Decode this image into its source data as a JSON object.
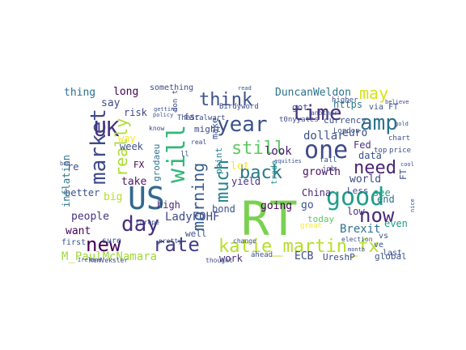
{
  "cloud": {
    "words": [
      {
        "text": "RT",
        "color": "#7ad151"
      },
      {
        "text": "US",
        "color": "#31688e"
      },
      {
        "text": "will",
        "color": "#35b779"
      },
      {
        "text": "market",
        "color": "#3e4a89"
      },
      {
        "text": "time",
        "color": "#46327e"
      },
      {
        "text": "year",
        "color": "#3b528b"
      },
      {
        "text": "amp",
        "color": "#2c728e"
      },
      {
        "text": "one",
        "color": "#3e4a89"
      },
      {
        "text": "UK",
        "color": "#46327e"
      },
      {
        "text": "good",
        "color": "#1f9e89"
      },
      {
        "text": "now",
        "color": "#482878"
      },
      {
        "text": "day",
        "color": "#472d7b"
      },
      {
        "text": "new",
        "color": "#440154"
      },
      {
        "text": "rate",
        "color": "#433e85"
      },
      {
        "text": "katie_martin_fx",
        "color": "#b5de2b"
      },
      {
        "text": "think",
        "color": "#3b528b"
      },
      {
        "text": "still",
        "color": "#5ec962"
      },
      {
        "text": "back",
        "color": "#2a788e"
      },
      {
        "text": "need",
        "color": "#482475"
      },
      {
        "text": "really",
        "color": "#addc30"
      },
      {
        "text": "much",
        "color": "#26828e"
      },
      {
        "text": "morning",
        "color": "#365c8d"
      },
      {
        "text": "may",
        "color": "#d8e219"
      },
      {
        "text": "DuncanWeldon",
        "color": "#2c728e"
      },
      {
        "text": "dollar",
        "color": "#3b528b"
      },
      {
        "text": "growth",
        "color": "#471063"
      },
      {
        "text": "world",
        "color": "#3e4a89"
      },
      {
        "text": "look",
        "color": "#48186a"
      },
      {
        "text": "going",
        "color": "#440154"
      },
      {
        "text": "go",
        "color": "#3b528b"
      },
      {
        "text": "Brexit",
        "color": "#2c728e"
      },
      {
        "text": "China",
        "color": "#482475"
      },
      {
        "text": "ECB",
        "color": "#3e4a89"
      },
      {
        "text": "M_PaulMcNamara",
        "color": "#a0da39"
      },
      {
        "text": "LadyFOHF",
        "color": "#3e4a89"
      },
      {
        "text": "people",
        "color": "#46327e"
      },
      {
        "text": "want",
        "color": "#440154"
      },
      {
        "text": "inflation",
        "color": "#2a788e"
      },
      {
        "text": "better",
        "color": "#3b528b"
      },
      {
        "text": "thing",
        "color": "#2c728e"
      },
      {
        "text": "long",
        "color": "#440154"
      },
      {
        "text": "say",
        "color": "#3e4a89"
      },
      {
        "text": "risk",
        "color": "#414487"
      },
      {
        "text": "week",
        "color": "#3b528b"
      },
      {
        "text": "take",
        "color": "#48186a"
      },
      {
        "text": "high",
        "color": "#482878"
      },
      {
        "text": "work",
        "color": "#472d7b"
      },
      {
        "text": "bond",
        "color": "#3b528b"
      },
      {
        "text": "yield",
        "color": "#46327e"
      },
      {
        "text": "euro",
        "color": "#3e4a89"
      },
      {
        "text": "Fed",
        "color": "#46327e"
      },
      {
        "text": "data",
        "color": "#3b528b"
      },
      {
        "text": "https",
        "color": "#2a788e"
      },
      {
        "text": "low",
        "color": "#46327e"
      },
      {
        "text": "see",
        "color": "#1f9e89"
      },
      {
        "text": "end",
        "color": "#2c728e"
      },
      {
        "text": "even",
        "color": "#1f9e89"
      },
      {
        "text": "today",
        "color": "#5ec962"
      },
      {
        "text": "global",
        "color": "#3b528b"
      },
      {
        "text": "UreshP",
        "color": "#3e4a89"
      },
      {
        "text": "lot",
        "color": "#fde725"
      },
      {
        "text": "way",
        "color": "#fde725"
      },
      {
        "text": "big",
        "color": "#b5de2b"
      },
      {
        "text": "FX",
        "color": "#440154"
      },
      {
        "text": "got",
        "color": "#3e4a89"
      },
      {
        "text": "currency",
        "color": "#3b528b"
      },
      {
        "text": "well",
        "color": "#3b528b"
      },
      {
        "text": "far",
        "color": "#3e4a89"
      },
      {
        "text": "might",
        "color": "#3e4a89"
      },
      {
        "text": "make",
        "color": "#3b528b"
      },
      {
        "text": "point",
        "color": "#26828e"
      },
      {
        "text": "grodaeu",
        "color": "#2c728e"
      },
      {
        "text": "trade",
        "color": "#21918c"
      },
      {
        "text": "via FT",
        "color": "#3b528b"
      },
      {
        "text": "Less",
        "color": "#3b528b"
      },
      {
        "text": "re",
        "color": "#3e4a89"
      },
      {
        "text": "FT",
        "color": "#3e4a89"
      },
      {
        "text": "vs",
        "color": "#3b528b"
      },
      {
        "text": "last",
        "color": "#3b528b"
      },
      {
        "text": "first",
        "color": "#3b528b"
      },
      {
        "text": "ve",
        "color": "#3b528b"
      },
      {
        "text": "sure",
        "color": "#3b528b"
      },
      {
        "text": "something",
        "color": "#3e4a89"
      },
      {
        "text": "TheStalwart",
        "color": "#3e4a89"
      },
      {
        "text": "Birdyword",
        "color": "#3e4a89"
      },
      {
        "text": "t0nyyates",
        "color": "#3e4a89"
      },
      {
        "text": "London",
        "color": "#3b528b"
      },
      {
        "text": "KenVeksler",
        "color": "#3e4a89"
      },
      {
        "text": "election",
        "color": "#3b528b"
      },
      {
        "text": "Europe",
        "color": "#3b528b"
      },
      {
        "text": "higher",
        "color": "#3e4a89"
      },
      {
        "text": "chart",
        "color": "#3b528b"
      },
      {
        "text": "price",
        "color": "#3b528b"
      },
      {
        "text": "thought",
        "color": "#3e4a89"
      },
      {
        "text": "know",
        "color": "#3e4a89"
      },
      {
        "text": "real",
        "color": "#3e4a89"
      },
      {
        "text": "ahead",
        "color": "#3b528b"
      },
      {
        "text": "don t",
        "color": "#3e4a89"
      },
      {
        "text": "ll",
        "color": "#3b528b"
      },
      {
        "text": "job",
        "color": "#3e4a89"
      },
      {
        "text": "great",
        "color": "#fde725"
      },
      {
        "text": "fall",
        "color": "#3b528b"
      },
      {
        "text": "top",
        "color": "#3e4a89"
      },
      {
        "text": "Ireland",
        "color": "#3b528b"
      },
      {
        "text": "pretty",
        "color": "#3b528b"
      },
      {
        "text": "change",
        "color": "#3e4a89"
      },
      {
        "text": "policy",
        "color": "#3b528b"
      },
      {
        "text": "getting",
        "color": "#3b528b"
      },
      {
        "text": "another",
        "color": "#3b528b"
      },
      {
        "text": "gold",
        "color": "#3b528b"
      },
      {
        "text": "equities",
        "color": "#3b528b"
      },
      {
        "text": "month",
        "color": "#3b528b"
      },
      {
        "text": "read",
        "color": "#3b528b"
      },
      {
        "text": "believe",
        "color": "#3e4a89"
      },
      {
        "text": "bad",
        "color": "#3e4a89"
      },
      {
        "text": "cool",
        "color": "#3b528b"
      },
      {
        "text": "nice",
        "color": "#3b528b"
      }
    ]
  }
}
